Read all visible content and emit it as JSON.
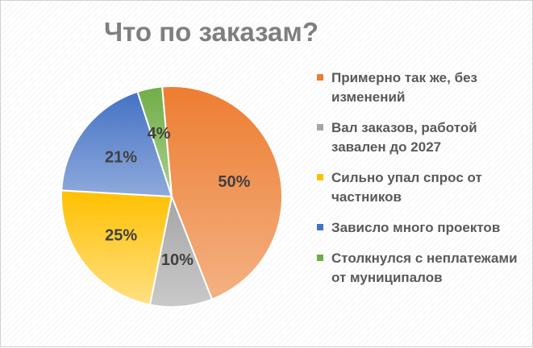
{
  "chart_data": {
    "type": "pie",
    "title": "Что по заказам?",
    "categories": [
      "Примерно так же, без изменений",
      "Вал заказов, работой завален до 2027",
      "Сильно упал спрос от частников",
      "Зависло много проектов",
      "Столкнулся с неплатежами от муниципалов"
    ],
    "values": [
      50,
      10,
      25,
      21,
      4
    ],
    "data_labels": [
      "50%",
      "10%",
      "25%",
      "21%",
      "4%"
    ],
    "colors": [
      [
        "#F4B183",
        "#ED7D31"
      ],
      [
        "#C9C9C9",
        "#A5A5A5"
      ],
      [
        "#FFE083",
        "#FFC000"
      ],
      [
        "#8FAADC",
        "#4472C4"
      ],
      [
        "#A9D18E",
        "#70AD47"
      ]
    ],
    "legend_position": "right",
    "start_angle_deg": -5
  }
}
